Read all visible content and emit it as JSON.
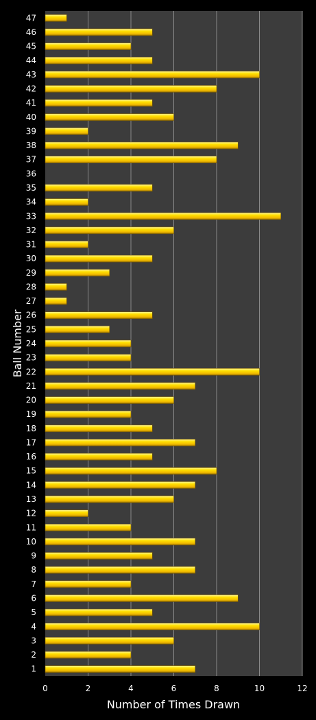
{
  "chart_data": {
    "type": "bar",
    "orientation": "horizontal",
    "title": "",
    "xlabel": "Number of Times Drawn",
    "ylabel": "Ball Number",
    "xlim": [
      0,
      12
    ],
    "x_ticks": [
      0,
      2,
      4,
      6,
      8,
      10,
      12
    ],
    "grid": true,
    "legend": "none",
    "colors": {
      "background": "#000000",
      "plot_area": "#3c3c3c",
      "gridline": "#8a8a8a",
      "bar_light": "#fff27a",
      "bar_mid": "#ffd400",
      "bar_dark": "#a87f00"
    },
    "categories": [
      "1",
      "2",
      "3",
      "4",
      "5",
      "6",
      "7",
      "8",
      "9",
      "10",
      "11",
      "12",
      "13",
      "14",
      "15",
      "16",
      "17",
      "18",
      "19",
      "20",
      "21",
      "22",
      "23",
      "24",
      "25",
      "26",
      "27",
      "28",
      "29",
      "30",
      "31",
      "32",
      "33",
      "34",
      "35",
      "36",
      "37",
      "38",
      "39",
      "40",
      "41",
      "42",
      "43",
      "44",
      "45",
      "46",
      "47"
    ],
    "values": [
      7,
      4,
      6,
      10,
      5,
      9,
      4,
      7,
      5,
      7,
      4,
      2,
      6,
      7,
      8,
      5,
      7,
      5,
      4,
      6,
      7,
      10,
      4,
      4,
      3,
      5,
      1,
      1,
      3,
      5,
      2,
      6,
      11,
      2,
      5,
      0,
      8,
      9,
      2,
      6,
      5,
      8,
      10,
      5,
      4,
      5,
      1
    ]
  }
}
